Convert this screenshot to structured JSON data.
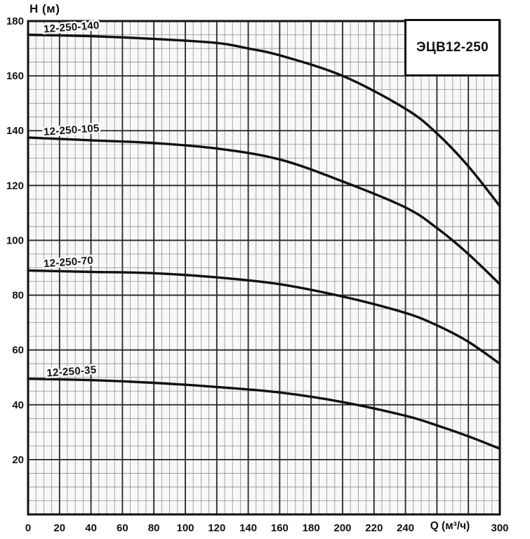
{
  "title_box": {
    "label": "ЭЦВ12-250"
  },
  "axes": {
    "y_title": "H (м)",
    "x_title": "Q (м³/ч)",
    "x_min": 0,
    "x_max": 300,
    "y_min": 0,
    "y_max": 180,
    "major_step": 20,
    "minor_step": 5,
    "x_tick_labels": [
      {
        "v": 0,
        "t": "0"
      },
      {
        "v": 20,
        "t": "20"
      },
      {
        "v": 40,
        "t": "40"
      },
      {
        "v": 60,
        "t": "60"
      },
      {
        "v": 80,
        "t": "80"
      },
      {
        "v": 100,
        "t": "100"
      },
      {
        "v": 120,
        "t": "120"
      },
      {
        "v": 140,
        "t": "140"
      },
      {
        "v": 160,
        "t": "160"
      },
      {
        "v": 180,
        "t": "180"
      },
      {
        "v": 200,
        "t": "200"
      },
      {
        "v": 220,
        "t": "220"
      },
      {
        "v": 240,
        "t": "240"
      },
      {
        "v": 300,
        "t": "300"
      }
    ],
    "y_tick_labels": [
      {
        "v": 20,
        "t": "20"
      },
      {
        "v": 40,
        "t": "40"
      },
      {
        "v": 60,
        "t": "60"
      },
      {
        "v": 80,
        "t": "80"
      },
      {
        "v": 100,
        "t": "100"
      },
      {
        "v": 120,
        "t": "120"
      },
      {
        "v": 140,
        "t": "140"
      },
      {
        "v": 160,
        "t": "160"
      },
      {
        "v": 180,
        "t": "180"
      }
    ]
  },
  "chart_data": {
    "type": "line",
    "title": "ЭЦВ12-250",
    "xlabel": "Q (м³/ч)",
    "ylabel": "H (м)",
    "xlim": [
      0,
      300
    ],
    "ylim": [
      0,
      180
    ],
    "grid": "minor every 5 units, major every 20 units, both axes",
    "legend_position": "labels above each curve at left",
    "series": [
      {
        "name": "12-250-140",
        "points": [
          [
            0,
            175
          ],
          [
            40,
            174.5
          ],
          [
            80,
            173.5
          ],
          [
            120,
            172
          ],
          [
            140,
            170
          ],
          [
            160,
            167.5
          ],
          [
            200,
            160
          ],
          [
            240,
            148
          ],
          [
            260,
            139
          ],
          [
            280,
            127
          ],
          [
            300,
            112.5
          ]
        ],
        "label_at": [
          10,
          175.3
        ],
        "label_angle": -4
      },
      {
        "name": "12-250-105",
        "points": [
          [
            0,
            137.5
          ],
          [
            40,
            136.5
          ],
          [
            80,
            135.5
          ],
          [
            120,
            133.5
          ],
          [
            160,
            129.5
          ],
          [
            200,
            121.5
          ],
          [
            240,
            112
          ],
          [
            260,
            104.5
          ],
          [
            280,
            95
          ],
          [
            300,
            84
          ]
        ],
        "label_at": [
          10,
          137.8
        ],
        "label_angle": -4
      },
      {
        "name": "12-250-70",
        "points": [
          [
            0,
            89
          ],
          [
            40,
            88.5
          ],
          [
            80,
            88
          ],
          [
            120,
            86.5
          ],
          [
            160,
            84
          ],
          [
            200,
            79.5
          ],
          [
            240,
            73.5
          ],
          [
            260,
            69
          ],
          [
            280,
            63
          ],
          [
            300,
            55
          ]
        ],
        "label_at": [
          10,
          89.7
        ],
        "label_angle": -4
      },
      {
        "name": "12-250-35",
        "points": [
          [
            0,
            49.5
          ],
          [
            40,
            49
          ],
          [
            80,
            48
          ],
          [
            120,
            46.5
          ],
          [
            160,
            44.5
          ],
          [
            200,
            41
          ],
          [
            240,
            36
          ],
          [
            260,
            32.5
          ],
          [
            280,
            28.5
          ],
          [
            300,
            24
          ]
        ],
        "label_at": [
          12,
          49.8
        ],
        "label_angle": -4
      }
    ]
  },
  "style": {
    "curve_color": "#111111",
    "grid_major_color": "#262626",
    "grid_minor_color": "#909090",
    "border_color": "#111111",
    "plot_bg": "#f8f8f8",
    "text_color": "#111111"
  }
}
